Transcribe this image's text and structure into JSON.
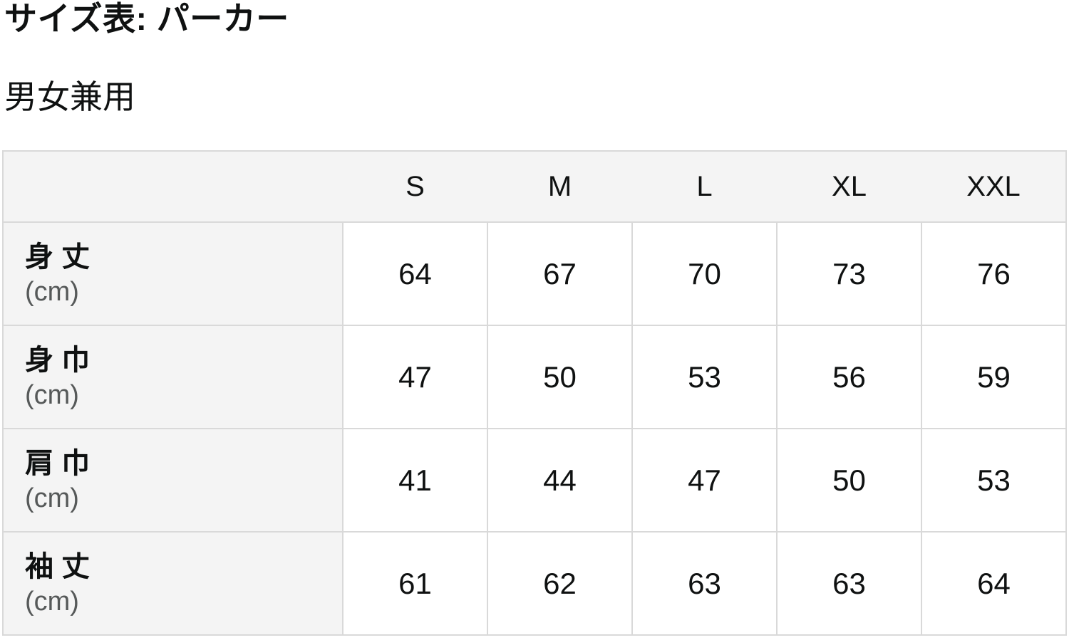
{
  "page": {
    "title": "サイズ表: パーカー",
    "subtitle": "男女兼用"
  },
  "size_table": {
    "columns": [
      "S",
      "M",
      "L",
      "XL",
      "XXL"
    ],
    "rows": [
      {
        "label": "身 丈",
        "unit": "(cm)",
        "values": [
          64,
          67,
          70,
          73,
          76
        ]
      },
      {
        "label": "身 巾",
        "unit": "(cm)",
        "values": [
          47,
          50,
          53,
          56,
          59
        ]
      },
      {
        "label": "肩 巾",
        "unit": "(cm)",
        "values": [
          41,
          44,
          47,
          50,
          53
        ]
      },
      {
        "label": "袖 丈",
        "unit": "(cm)",
        "values": [
          61,
          62,
          63,
          63,
          64
        ]
      }
    ]
  },
  "colors": {
    "text": "#0f1111",
    "muted_text": "#565959",
    "header_background": "#f4f4f4",
    "border": "#d9d9d9",
    "page_background": "#ffffff"
  }
}
